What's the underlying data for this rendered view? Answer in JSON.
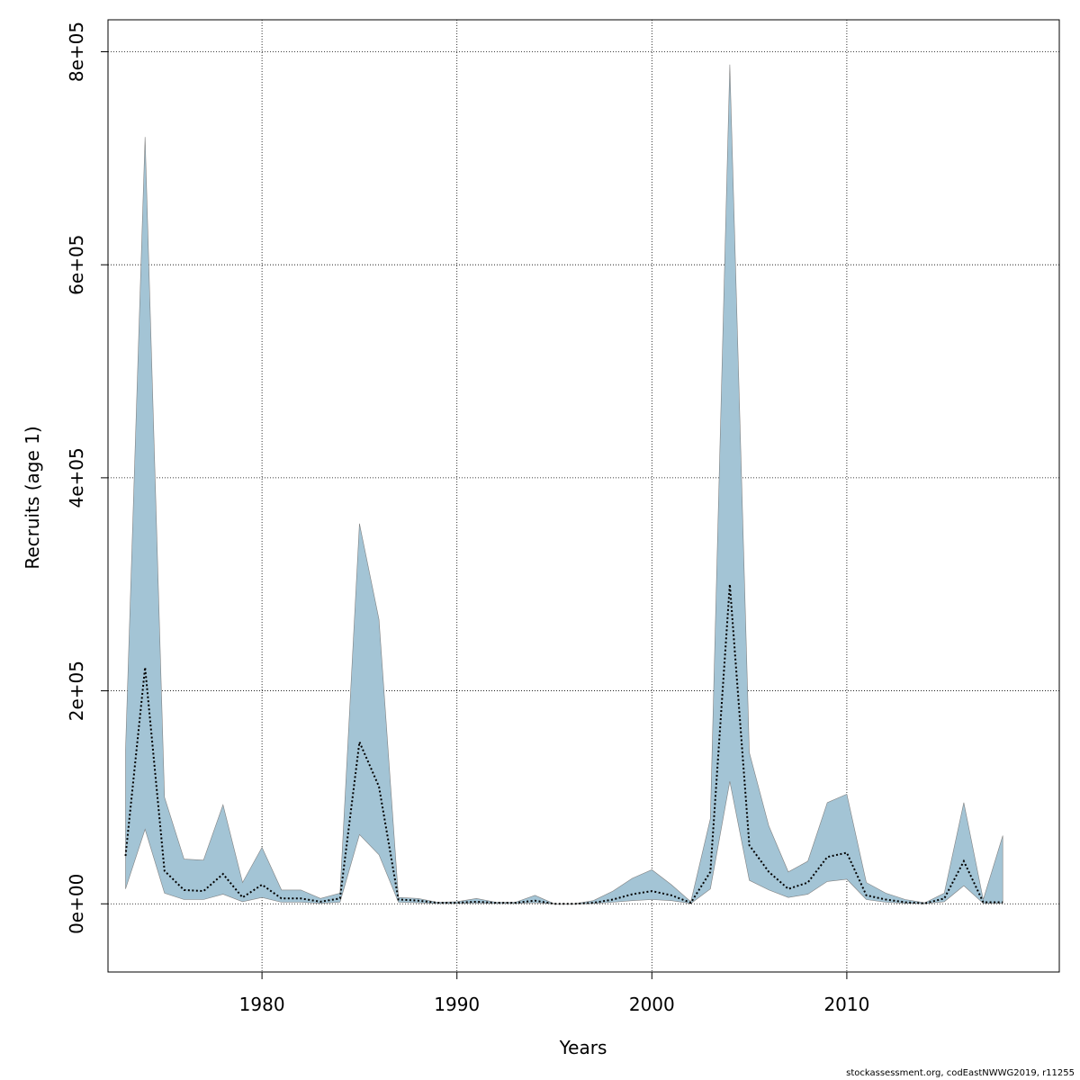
{
  "chart_data": {
    "type": "area",
    "xlabel": "Years",
    "ylabel": "Recruits (age 1)",
    "xlim": [
      1972.1,
      2020.9
    ],
    "ylim": [
      -64000,
      830000
    ],
    "x_ticks": [
      1980,
      1990,
      2000,
      2010
    ],
    "y_ticks": [
      0,
      200000,
      400000,
      600000,
      800000
    ],
    "y_tick_labels": [
      "0e+00",
      "2e+05",
      "4e+05",
      "6e+05",
      "8e+05"
    ],
    "grid": true,
    "colors": {
      "band": "#a3c4d5",
      "band_edge": "#808080",
      "median": "#000000",
      "grid": "#000000"
    },
    "years": [
      1973,
      1974,
      1975,
      1976,
      1977,
      1978,
      1979,
      1980,
      1981,
      1982,
      1983,
      1984,
      1985,
      1986,
      1987,
      1988,
      1989,
      1990,
      1991,
      1992,
      1993,
      1994,
      1995,
      1996,
      1997,
      1998,
      1999,
      2000,
      2001,
      2002,
      2003,
      2004,
      2005,
      2006,
      2007,
      2008,
      2009,
      2010,
      2011,
      2012,
      2013,
      2014,
      2015,
      2016,
      2017,
      2018
    ],
    "series": [
      {
        "values": [
          45000,
          222000,
          31000,
          13000,
          12000,
          28000,
          6000,
          18000,
          5000,
          5000,
          2000,
          5000,
          152000,
          110000,
          4000,
          3000,
          1000,
          1000,
          2000,
          1000,
          1000,
          3000,
          0,
          0,
          1000,
          4000,
          9000,
          12000,
          8000,
          1000,
          30000,
          300000,
          55000,
          30000,
          14000,
          20000,
          44000,
          48000,
          8000,
          4000,
          1500,
          400,
          5000,
          40000,
          1500,
          1500
        ]
      },
      {
        "values": [
          14000,
          70000,
          10000,
          4000,
          4000,
          9000,
          2000,
          6000,
          1500,
          1500,
          500,
          1500,
          65000,
          46000,
          1500,
          1000,
          300,
          300,
          600,
          300,
          300,
          1000,
          0,
          0,
          300,
          1500,
          3000,
          4000,
          3000,
          300,
          14000,
          115000,
          22000,
          13000,
          6000,
          9000,
          21000,
          23000,
          4000,
          1500,
          500,
          100,
          2000,
          17000,
          500,
          500
        ]
      },
      {
        "values": [
          145000,
          720000,
          100000,
          42000,
          41000,
          93000,
          20000,
          53000,
          13000,
          13000,
          5000,
          10000,
          357000,
          267000,
          6000,
          5000,
          1500,
          2000,
          5000,
          1500,
          1500,
          8000,
          0,
          0,
          3000,
          12000,
          24000,
          32000,
          18000,
          2000,
          80000,
          788000,
          142000,
          73000,
          30000,
          40000,
          95000,
          103000,
          20000,
          10000,
          4000,
          1000,
          10000,
          95000,
          4000,
          64000
        ]
      }
    ]
  },
  "footer": {
    "text": "stockassessment.org, codEastNWWG2019, r11255"
  }
}
